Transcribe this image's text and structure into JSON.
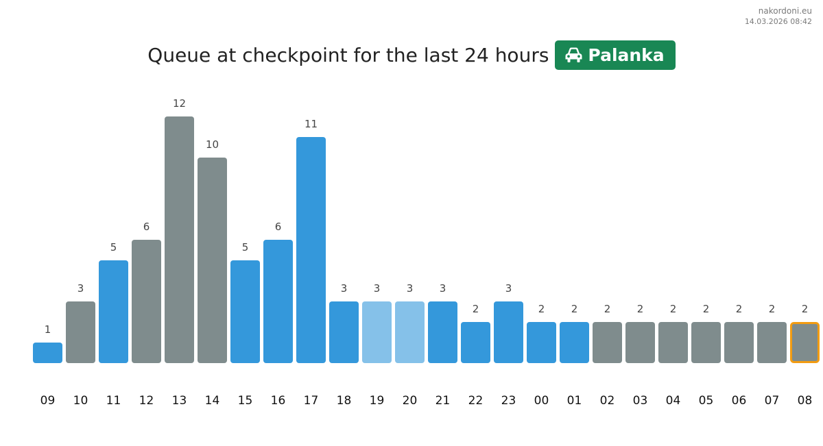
{
  "brand": {
    "site": "nakordoni.eu",
    "timestamp": "14.03.2026 08:42"
  },
  "header": {
    "title": "Queue at checkpoint for the last 24 hours",
    "badge_label": "Palanka",
    "badge_icon": "car-icon",
    "badge_color": "#198754"
  },
  "colors": {
    "blue": "#3498db",
    "light_blue": "#85c1e9",
    "gray": "#7f8c8d",
    "highlight_border": "#f39c12"
  },
  "chart_data": {
    "type": "bar",
    "title": "Queue at checkpoint for the last 24 hours",
    "xlabel": "",
    "ylabel": "",
    "categories": [
      "09",
      "10",
      "11",
      "12",
      "13",
      "14",
      "15",
      "16",
      "17",
      "18",
      "19",
      "20",
      "21",
      "22",
      "23",
      "00",
      "01",
      "02",
      "03",
      "04",
      "05",
      "06",
      "07",
      "08"
    ],
    "values": [
      1,
      3,
      5,
      6,
      12,
      10,
      5,
      6,
      11,
      3,
      3,
      3,
      3,
      2,
      3,
      2,
      2,
      2,
      2,
      2,
      2,
      2,
      2,
      2
    ],
    "bar_colors": [
      "blue",
      "gray",
      "blue",
      "gray",
      "gray",
      "gray",
      "blue",
      "blue",
      "blue",
      "blue",
      "light_blue",
      "light_blue",
      "blue",
      "blue",
      "blue",
      "blue",
      "blue",
      "gray",
      "gray",
      "gray",
      "gray",
      "gray",
      "gray",
      "gray"
    ],
    "highlighted_category": "08",
    "ylim": [
      0,
      12
    ],
    "grid": false,
    "legend": "none"
  }
}
